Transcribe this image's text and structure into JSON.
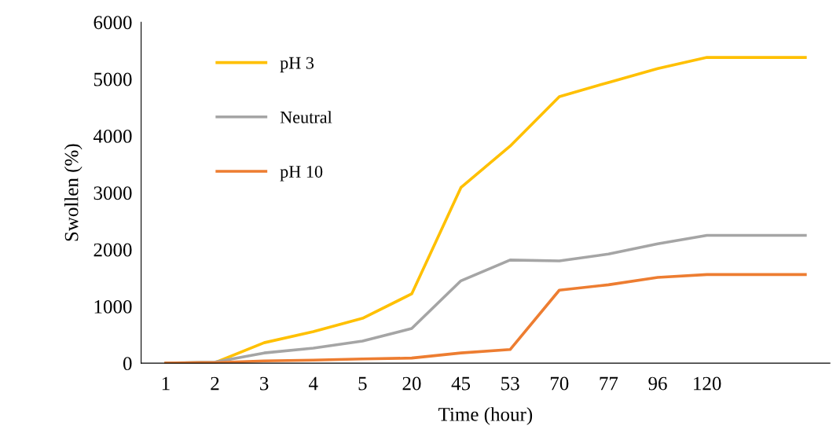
{
  "chart_data": {
    "type": "line",
    "xlabel": "Time (hour)",
    "ylabel": "Swollen (%)",
    "categories": [
      "1",
      "2",
      "3",
      "4",
      "5",
      "20",
      "45",
      "53",
      "70",
      "77",
      "96",
      "120",
      null,
      null
    ],
    "series": [
      {
        "name": "pH 3",
        "color": "#ffc000",
        "values": [
          0,
          10,
          360,
          555,
          790,
          1220,
          3090,
          3820,
          4690,
          4940,
          5185,
          5380,
          5380,
          5380
        ]
      },
      {
        "name": "Neutral",
        "color": "#a5a5a5",
        "values": [
          0,
          20,
          180,
          265,
          390,
          610,
          1450,
          1815,
          1800,
          1920,
          2100,
          2250,
          2250,
          2250
        ]
      },
      {
        "name": "pH 10",
        "color": "#ed7d31",
        "values": [
          0,
          10,
          40,
          55,
          75,
          90,
          180,
          240,
          1285,
          1380,
          1510,
          1560,
          1560,
          1560
        ]
      }
    ],
    "ylim": [
      0,
      6000
    ],
    "yticks": [
      0,
      1000,
      2000,
      3000,
      4000,
      5000,
      6000
    ],
    "grid": false,
    "legend": "top left",
    "marker": "none",
    "line_style": "solid"
  }
}
